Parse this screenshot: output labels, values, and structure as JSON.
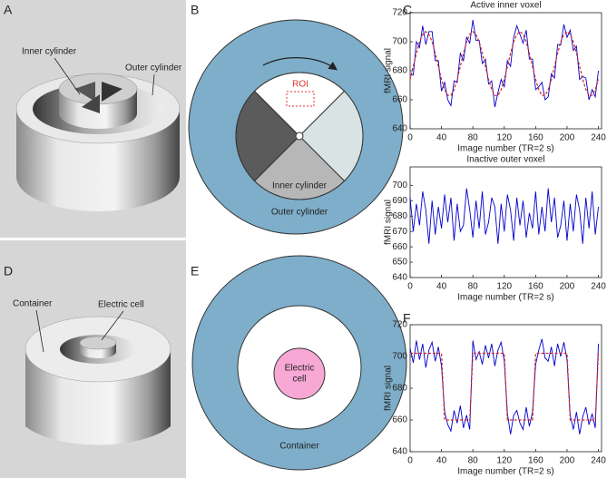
{
  "panel_labels": [
    "A",
    "B",
    "C",
    "D",
    "E",
    "F"
  ],
  "diagram_labels": {
    "A": [
      "Inner cylinder",
      "Outer cylinder"
    ],
    "B": [
      "ROI",
      "Inner cylinder",
      "Outer cylinder"
    ],
    "D": [
      "Container",
      "Electric cell"
    ],
    "E": [
      "Electric",
      "cell",
      "Container"
    ]
  },
  "chart_data": [
    {
      "type": "line",
      "title": "Active inner voxel",
      "x_label": "Image number (TR=2 s)",
      "y_label": "fMRI signal",
      "x": [
        0,
        4,
        8,
        12,
        16,
        20,
        24,
        28,
        32,
        36,
        40,
        44,
        48,
        52,
        56,
        60,
        64,
        68,
        72,
        76,
        80,
        84,
        88,
        92,
        96,
        100,
        104,
        108,
        112,
        116,
        120,
        124,
        128,
        132,
        136,
        140,
        144,
        148,
        152,
        156,
        160,
        164,
        168,
        172,
        176,
        180,
        184,
        188,
        192,
        196,
        200,
        204,
        208,
        212,
        216,
        220,
        224,
        228,
        232,
        236,
        240
      ],
      "series": [
        {
          "color": "#0000cc",
          "style": "solid",
          "values": [
            677,
            677,
            700,
            696,
            711,
            698,
            707,
            707,
            687,
            687,
            666,
            672,
            660,
            656,
            673,
            672,
            692,
            687,
            703,
            699,
            715,
            701,
            701,
            685,
            688,
            671,
            673,
            655,
            665,
            674,
            669,
            687,
            683,
            703,
            711,
            705,
            699,
            708,
            688,
            688,
            667,
            669,
            672,
            660,
            662,
            678,
            675,
            698,
            698,
            712,
            703,
            708,
            694,
            697,
            674,
            676,
            675,
            660,
            667,
            662,
            680
          ]
        },
        {
          "color": "#d62020",
          "style": "dashed",
          "values": [
            674,
            683,
            692,
            700,
            705,
            707,
            705,
            700,
            692,
            683,
            674,
            667,
            663,
            663,
            667,
            674,
            683,
            692,
            700,
            705,
            707,
            705,
            700,
            692,
            683,
            674,
            667,
            663,
            663,
            667,
            674,
            683,
            692,
            700,
            705,
            707,
            705,
            700,
            692,
            683,
            674,
            667,
            663,
            663,
            667,
            674,
            683,
            692,
            700,
            705,
            707,
            705,
            700,
            692,
            683,
            674,
            667,
            663,
            663,
            667,
            674
          ]
        }
      ],
      "xlim": [
        0,
        244
      ],
      "xticks": [
        0,
        40,
        80,
        120,
        160,
        200,
        240
      ],
      "ylim": [
        640,
        720
      ],
      "yticks": [
        640,
        660,
        680,
        700,
        720
      ]
    },
    {
      "type": "line",
      "title": "Inactive outer voxel",
      "x_label": "Image number (TR=2 s)",
      "y_label": "fMRI signal",
      "x": [
        0,
        4,
        8,
        12,
        16,
        20,
        24,
        28,
        32,
        36,
        40,
        44,
        48,
        52,
        56,
        60,
        64,
        68,
        72,
        76,
        80,
        84,
        88,
        92,
        96,
        100,
        104,
        108,
        112,
        116,
        120,
        124,
        128,
        132,
        136,
        140,
        144,
        148,
        152,
        156,
        160,
        164,
        168,
        172,
        176,
        180,
        184,
        188,
        192,
        196,
        200,
        204,
        208,
        212,
        216,
        220,
        224,
        228,
        232,
        236,
        240
      ],
      "series": [
        {
          "color": "#0000cc",
          "style": "solid",
          "values": [
            692,
            670,
            688,
            674,
            696,
            684,
            662,
            690,
            668,
            686,
            672,
            694,
            676,
            692,
            664,
            688,
            670,
            674,
            698,
            684,
            666,
            690,
            672,
            696,
            668,
            676,
            692,
            686,
            662,
            688,
            670,
            694,
            684,
            664,
            692,
            674,
            690,
            666,
            682,
            672,
            696,
            668,
            686,
            670,
            698,
            676,
            692,
            666,
            674,
            690,
            664,
            688,
            670,
            694,
            684,
            662,
            692,
            672,
            696,
            668,
            686
          ]
        }
      ],
      "xlim": [
        0,
        244
      ],
      "xticks": [
        0,
        40,
        80,
        120,
        160,
        200,
        240
      ],
      "ylim": [
        640,
        712
      ],
      "yticks": [
        640,
        650,
        660,
        670,
        680,
        690,
        700
      ]
    },
    {
      "type": "line",
      "x_label": "Image number (TR=2 s)",
      "y_label": "fMRI signal",
      "x": [
        0,
        4,
        8,
        12,
        16,
        20,
        24,
        28,
        32,
        36,
        40,
        44,
        48,
        52,
        56,
        60,
        64,
        68,
        72,
        76,
        80,
        84,
        88,
        92,
        96,
        100,
        104,
        108,
        112,
        116,
        120,
        124,
        128,
        132,
        136,
        140,
        144,
        148,
        152,
        156,
        160,
        164,
        168,
        172,
        176,
        180,
        184,
        188,
        192,
        196,
        200,
        204,
        208,
        212,
        216,
        220,
        224,
        228,
        232,
        236,
        240
      ],
      "series": [
        {
          "color": "#0000cc",
          "style": "solid",
          "values": [
            705,
            696,
            710,
            698,
            708,
            693,
            704,
            709,
            697,
            706,
            694,
            665,
            657,
            653,
            666,
            658,
            669,
            655,
            663,
            654,
            710,
            698,
            703,
            695,
            707,
            699,
            708,
            694,
            704,
            709,
            697,
            664,
            651,
            663,
            666,
            658,
            654,
            668,
            656,
            665,
            695,
            704,
            711,
            699,
            697,
            706,
            694,
            708,
            700,
            709,
            698,
            663,
            654,
            665,
            651,
            662,
            668,
            657,
            664,
            655,
            708
          ]
        },
        {
          "color": "#d62020",
          "style": "dashed",
          "values": [
            702,
            702,
            702,
            702,
            702,
            702,
            702,
            702,
            702,
            702,
            702,
            660,
            660,
            660,
            660,
            660,
            660,
            660,
            660,
            660,
            702,
            702,
            702,
            702,
            702,
            702,
            702,
            702,
            702,
            702,
            702,
            660,
            660,
            660,
            660,
            660,
            660,
            660,
            660,
            660,
            702,
            702,
            702,
            702,
            702,
            702,
            702,
            702,
            702,
            702,
            702,
            660,
            660,
            660,
            660,
            660,
            660,
            660,
            660,
            660,
            702
          ]
        }
      ],
      "xlim": [
        0,
        244
      ],
      "xticks": [
        0,
        40,
        80,
        120,
        160,
        200,
        240
      ],
      "ylim": [
        640,
        720
      ],
      "yticks": [
        640,
        660,
        680,
        700,
        720
      ]
    }
  ]
}
